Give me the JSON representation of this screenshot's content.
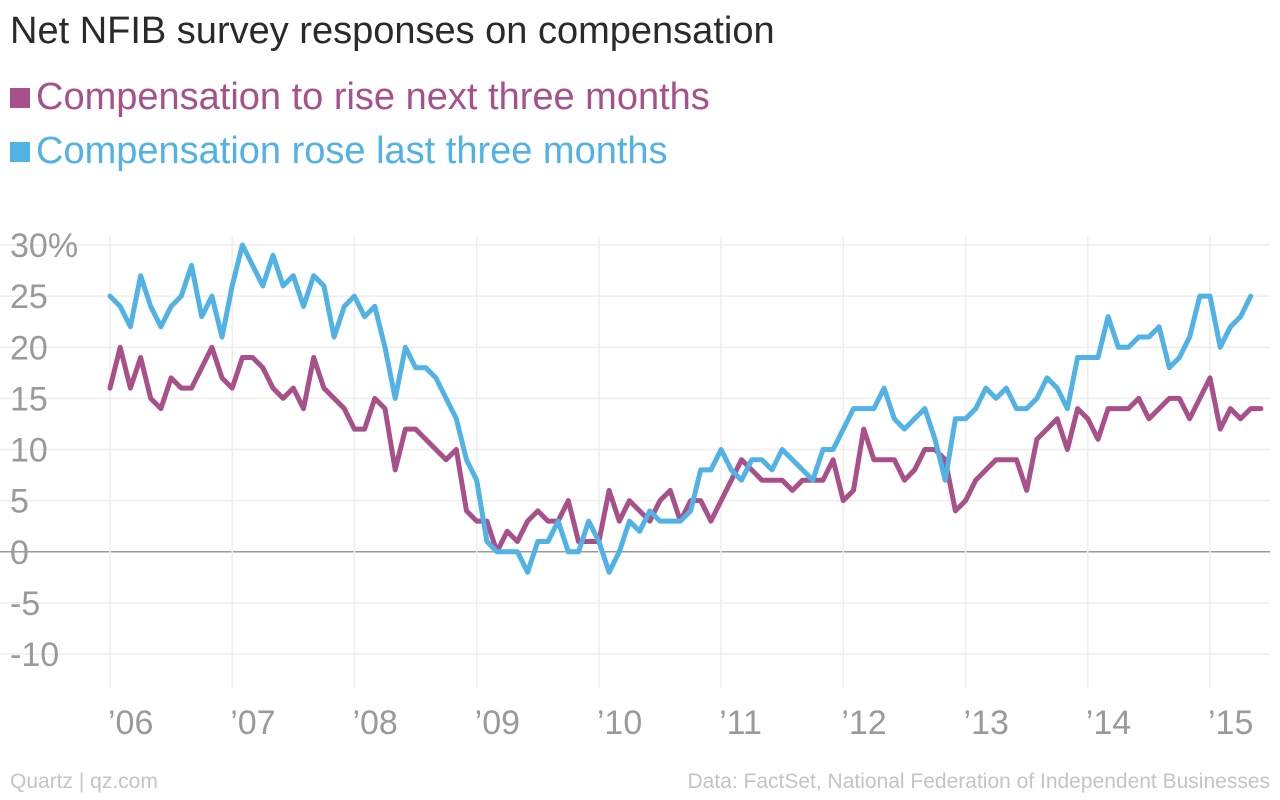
{
  "chart_data": {
    "type": "line",
    "title": "Net NFIB survey responses on compensation",
    "ytick_labels": [
      "30%",
      "25",
      "20",
      "15",
      "10",
      "5",
      "0",
      "-5",
      "-10"
    ],
    "yticks": [
      30,
      25,
      20,
      15,
      10,
      5,
      0,
      -5,
      -10
    ],
    "ylim": [
      -13,
      32
    ],
    "xtick_labels": [
      "’06",
      "’07",
      "’08",
      "’09",
      "’10",
      "’11",
      "’12",
      "’13",
      "’14",
      "’15"
    ],
    "xticks": [
      "2006-01",
      "2007-01",
      "2008-01",
      "2009-01",
      "2010-01",
      "2011-01",
      "2012-01",
      "2013-01",
      "2014-01",
      "2015-01"
    ],
    "xlim": [
      "2006-01",
      "2015-04"
    ],
    "grid": true,
    "legend_position": "top-left",
    "series": [
      {
        "name": "Compensation to rise next three months",
        "color": "#a8508a",
        "start": "2006-01",
        "frequency": "monthly",
        "values": [
          16,
          20,
          16,
          19,
          15,
          14,
          17,
          16,
          16,
          18,
          20,
          17,
          16,
          19,
          19,
          18,
          16,
          15,
          16,
          14,
          19,
          16,
          15,
          14,
          12,
          12,
          15,
          14,
          8,
          12,
          12,
          11,
          10,
          9,
          10,
          4,
          3,
          3,
          0,
          2,
          1,
          3,
          4,
          3,
          3,
          5,
          1,
          1,
          1,
          6,
          3,
          5,
          4,
          3,
          5,
          6,
          3,
          5,
          5,
          3,
          5,
          7,
          9,
          8,
          7,
          7,
          7,
          6,
          7,
          7,
          7,
          9,
          5,
          6,
          12,
          9,
          9,
          9,
          7,
          8,
          10,
          10,
          9,
          4,
          5,
          7,
          8,
          9,
          9,
          9,
          6,
          11,
          12,
          13,
          10,
          14,
          13,
          11,
          14,
          14,
          14,
          15,
          13,
          14,
          15,
          15,
          13,
          15,
          17,
          12,
          14,
          13,
          14,
          14
        ]
      },
      {
        "name": "Compensation rose last three months",
        "color": "#51b2e5",
        "start": "2006-01",
        "frequency": "monthly",
        "values": [
          25,
          24,
          22,
          27,
          24,
          22,
          24,
          25,
          28,
          23,
          25,
          21,
          26,
          30,
          28,
          26,
          29,
          26,
          27,
          24,
          27,
          26,
          21,
          24,
          25,
          23,
          24,
          20,
          15,
          20,
          18,
          18,
          17,
          15,
          13,
          9,
          7,
          1,
          0,
          0,
          0,
          -2,
          1,
          1,
          3,
          0,
          0,
          3,
          1,
          -2,
          0,
          3,
          2,
          4,
          3,
          3,
          3,
          4,
          8,
          8,
          10,
          8,
          7,
          9,
          9,
          8,
          10,
          9,
          8,
          7,
          10,
          10,
          12,
          14,
          14,
          14,
          16,
          13,
          12,
          13,
          14,
          11,
          7,
          13,
          13,
          14,
          16,
          15,
          16,
          14,
          14,
          15,
          17,
          16,
          14,
          19,
          19,
          19,
          23,
          20,
          20,
          21,
          21,
          22,
          18,
          19,
          21,
          25,
          25,
          20,
          22,
          23,
          25
        ]
      }
    ]
  },
  "footer": {
    "source_left": "Quartz | qz.com",
    "source_right": "Data: FactSet, National Federation of Independent Businesses"
  }
}
